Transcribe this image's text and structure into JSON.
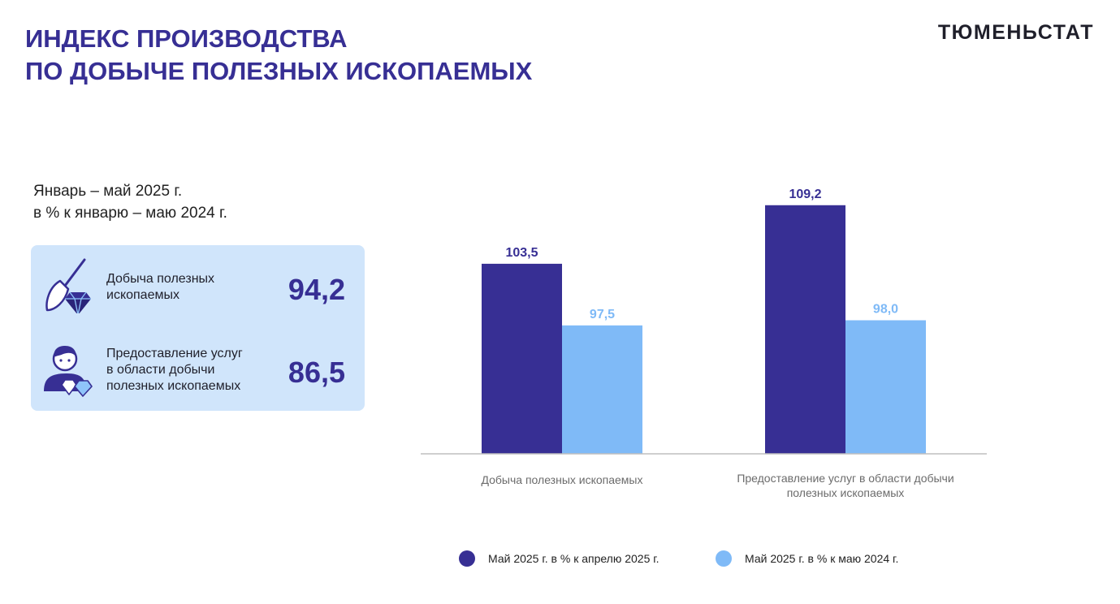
{
  "header": {
    "title_line1": "ИНДЕКС ПРОИЗВОДСТВА",
    "title_line2": "ПО ДОБЫЧЕ ПОЛЕЗНЫХ ИСКОПАЕМЫХ",
    "brand": "ТЮМЕНЬСТАТ"
  },
  "summary": {
    "period_line1": "Январь – май 2025 г.",
    "period_line2": "в % к январю – маю 2024 г.",
    "items": [
      {
        "label_lines": [
          "Добыча полезных",
          "ископаемых"
        ],
        "value": "94,2",
        "icon": "shovel-diamond-icon"
      },
      {
        "label_lines": [
          "Предоставление услуг",
          "в области добычи",
          "полезных ископаемых"
        ],
        "value": "86,5",
        "icon": "worker-diamond-icon"
      }
    ]
  },
  "chart_data": {
    "type": "bar",
    "categories": [
      "Добыча полезных ископаемых",
      "Предоставление услуг в области добычи полезных ископаемых"
    ],
    "category_label_lines": [
      [
        "Добыча полезных ископаемых"
      ],
      [
        "Предоставление услуг в области добычи",
        "полезных ископаемых"
      ]
    ],
    "series": [
      {
        "name": "Май 2025 г. в % к апрелю 2025 г.",
        "values": [
          103.5,
          109.2
        ],
        "labels": [
          "103,5",
          "109,2"
        ],
        "color": "#372f94"
      },
      {
        "name": "Май 2025 г. в % к маю 2024 г.",
        "values": [
          97.5,
          98.0
        ],
        "labels": [
          "97,5",
          "98,0"
        ],
        "color": "#7fbaf7"
      }
    ],
    "title": "",
    "xlabel": "",
    "ylabel": "",
    "ylim": [
      85,
      111
    ],
    "grid": false,
    "legend_position": "bottom"
  },
  "legend": [
    {
      "label": "Май 2025 г. в % к апрелю 2025 г.",
      "color": "#372f94"
    },
    {
      "label": "Май 2025 г. в % к маю 2024 г.",
      "color": "#7fbaf7"
    }
  ]
}
